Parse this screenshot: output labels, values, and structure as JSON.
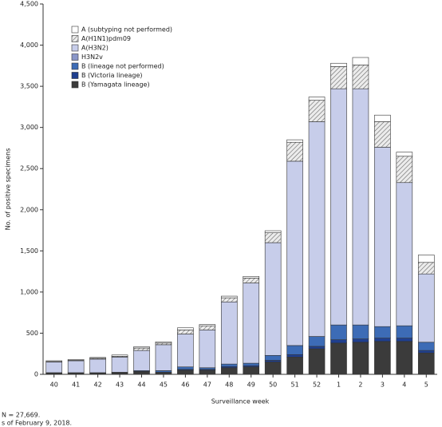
{
  "chart_data": {
    "type": "stacked-bar",
    "categories": [
      "40",
      "41",
      "42",
      "43",
      "44",
      "45",
      "46",
      "47",
      "48",
      "49",
      "50",
      "51",
      "52",
      "1",
      "2",
      "3",
      "4",
      "5"
    ],
    "series": [
      {
        "name": "B (Yamagata lineage)",
        "color": "#3b3b3b",
        "values": [
          10,
          10,
          10,
          15,
          30,
          20,
          50,
          50,
          80,
          90,
          150,
          210,
          310,
          380,
          390,
          400,
          400,
          260
        ]
      },
      {
        "name": "B (Victoria lineage)",
        "color": "#1f3f8f",
        "values": [
          5,
          5,
          5,
          5,
          5,
          5,
          10,
          10,
          15,
          15,
          20,
          30,
          30,
          40,
          40,
          40,
          40,
          30
        ]
      },
      {
        "name": "B (lineage not performed)",
        "color": "#3d6cb6",
        "values": [
          5,
          5,
          5,
          5,
          10,
          20,
          30,
          20,
          30,
          30,
          60,
          110,
          120,
          180,
          170,
          140,
          150,
          100
        ]
      },
      {
        "name": "H3N2v",
        "color": "#8a97c9",
        "values": [
          0,
          0,
          0,
          0,
          0,
          0,
          0,
          0,
          0,
          0,
          0,
          0,
          0,
          0,
          0,
          0,
          0,
          0
        ]
      },
      {
        "name": "A(H3N2)",
        "color": "#c7cdea",
        "values": [
          130,
          145,
          165,
          185,
          245,
          315,
          400,
          460,
          755,
          975,
          1370,
          2240,
          2610,
          2870,
          2870,
          2180,
          1740,
          830
        ]
      },
      {
        "name": "A(H1N1)pdm09",
        "color": "#d0d0d0",
        "pattern": "hatch",
        "values": [
          5,
          5,
          10,
          10,
          30,
          20,
          50,
          50,
          50,
          60,
          120,
          230,
          260,
          270,
          290,
          310,
          320,
          140
        ]
      },
      {
        "name": "A (subtyping not performed)",
        "color": "#ffffff",
        "values": [
          10,
          10,
          10,
          15,
          15,
          15,
          25,
          15,
          20,
          20,
          25,
          30,
          40,
          40,
          90,
          80,
          50,
          90
        ]
      }
    ],
    "ylim": [
      0,
      4500
    ],
    "yticks": [
      0,
      500,
      {
        "value": 1000,
        "label": "1,000"
      },
      {
        "value": 1500,
        "label": "1,500"
      },
      {
        "value": 2000,
        "label": "2,000"
      },
      {
        "value": 2500,
        "label": "2,500"
      },
      {
        "value": 3000,
        "label": "3,000"
      },
      {
        "value": 3500,
        "label": "3,500"
      },
      {
        "value": 4000,
        "label": "4,000"
      },
      {
        "value": 4500,
        "label": "4,500"
      }
    ],
    "ylabel": "No. of positive specimens",
    "xlabel": "Surveillance week",
    "footnotes": [
      "N = 27,669.",
      "s of February 9, 2018."
    ]
  }
}
